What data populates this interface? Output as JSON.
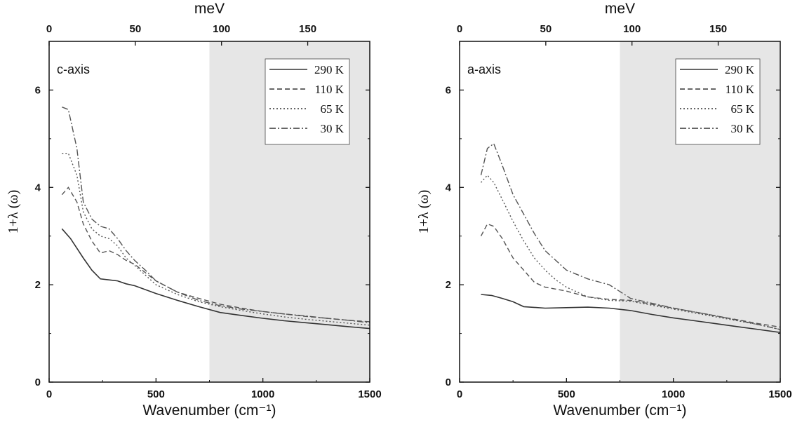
{
  "chart_data": [
    {
      "type": "line",
      "panel_label": "c-axis",
      "xlabel": "Wavenumber (cm⁻¹)",
      "x2label": "meV",
      "ylabel": "1+λ (ω)",
      "xlim": [
        0,
        1500
      ],
      "x2lim": [
        0,
        186
      ],
      "ylim": [
        0,
        7
      ],
      "xticks": [
        0,
        500,
        1000,
        1500
      ],
      "x2ticks": [
        0,
        50,
        100,
        150
      ],
      "yticks": [
        0,
        2,
        4,
        6
      ],
      "shaded_region": [
        750,
        1500
      ],
      "legend_position": "top-right",
      "series": [
        {
          "name": "290 K",
          "dash": "solid",
          "x": [
            60,
            100,
            130,
            160,
            200,
            240,
            280,
            320,
            360,
            400,
            500,
            600,
            700,
            800,
            900,
            1000,
            1100,
            1200,
            1300,
            1400,
            1500
          ],
          "y": [
            3.15,
            2.95,
            2.75,
            2.55,
            2.3,
            2.12,
            2.1,
            2.08,
            2.02,
            1.98,
            1.82,
            1.68,
            1.55,
            1.43,
            1.37,
            1.31,
            1.26,
            1.22,
            1.18,
            1.14,
            1.1
          ]
        },
        {
          "name": "110 K",
          "dash": "dashed",
          "x": [
            60,
            90,
            130,
            160,
            200,
            240,
            280,
            320,
            360,
            400,
            450,
            500,
            600,
            700,
            800,
            900,
            1000,
            1100,
            1200,
            1300,
            1400,
            1500
          ],
          "y": [
            3.85,
            4.0,
            3.7,
            3.25,
            2.9,
            2.65,
            2.7,
            2.62,
            2.5,
            2.42,
            2.25,
            2.08,
            1.85,
            1.72,
            1.6,
            1.52,
            1.45,
            1.4,
            1.35,
            1.31,
            1.27,
            1.24
          ]
        },
        {
          "name": "65 K",
          "dash": "dotted",
          "x": [
            60,
            90,
            130,
            160,
            200,
            240,
            280,
            320,
            360,
            400,
            450,
            500,
            600,
            700,
            800,
            900,
            1000,
            1100,
            1200,
            1300,
            1400,
            1500
          ],
          "y": [
            4.7,
            4.7,
            4.25,
            3.5,
            3.15,
            3.0,
            2.95,
            2.8,
            2.55,
            2.4,
            2.2,
            2.0,
            1.8,
            1.65,
            1.55,
            1.47,
            1.4,
            1.34,
            1.29,
            1.25,
            1.21,
            1.17
          ]
        },
        {
          "name": "30 K",
          "dash": "dashdot",
          "x": [
            60,
            90,
            130,
            160,
            200,
            240,
            280,
            320,
            360,
            400,
            450,
            500,
            600,
            700,
            800,
            900,
            1000,
            1100,
            1200,
            1300,
            1400,
            1500
          ],
          "y": [
            5.65,
            5.6,
            4.8,
            3.7,
            3.35,
            3.2,
            3.15,
            2.95,
            2.7,
            2.5,
            2.3,
            2.08,
            1.85,
            1.68,
            1.57,
            1.5,
            1.45,
            1.4,
            1.36,
            1.31,
            1.27,
            1.22
          ]
        }
      ]
    },
    {
      "type": "line",
      "panel_label": "a-axis",
      "xlabel": "Wavenumber (cm⁻¹)",
      "x2label": "meV",
      "ylabel": "1+λ (ω)",
      "xlim": [
        0,
        1500
      ],
      "x2lim": [
        0,
        186
      ],
      "ylim": [
        0,
        7
      ],
      "xticks": [
        0,
        500,
        1000,
        1500
      ],
      "x2ticks": [
        0,
        50,
        100,
        150
      ],
      "yticks": [
        0,
        2,
        4,
        6
      ],
      "shaded_region": [
        750,
        1500
      ],
      "legend_position": "top-right",
      "series": [
        {
          "name": "290 K",
          "dash": "solid",
          "x": [
            100,
            150,
            200,
            250,
            300,
            400,
            500,
            600,
            700,
            800,
            900,
            1000,
            1100,
            1200,
            1300,
            1400,
            1500
          ],
          "y": [
            1.8,
            1.78,
            1.72,
            1.65,
            1.55,
            1.52,
            1.53,
            1.54,
            1.52,
            1.47,
            1.39,
            1.32,
            1.26,
            1.2,
            1.14,
            1.08,
            1.02
          ]
        },
        {
          "name": "110 K",
          "dash": "dashed",
          "x": [
            100,
            130,
            160,
            200,
            250,
            300,
            350,
            400,
            500,
            600,
            700,
            800,
            900,
            1000,
            1100,
            1200,
            1300,
            1400,
            1500
          ],
          "y": [
            3.0,
            3.25,
            3.2,
            2.95,
            2.55,
            2.3,
            2.05,
            1.95,
            1.87,
            1.75,
            1.7,
            1.68,
            1.6,
            1.52,
            1.44,
            1.36,
            1.28,
            1.2,
            1.13
          ]
        },
        {
          "name": "65 K",
          "dash": "dotted",
          "x": [
            100,
            130,
            160,
            200,
            250,
            300,
            350,
            400,
            450,
            500,
            600,
            700,
            800,
            900,
            1000,
            1100,
            1200,
            1300,
            1400,
            1500
          ],
          "y": [
            4.1,
            4.25,
            4.1,
            3.75,
            3.3,
            2.9,
            2.55,
            2.3,
            2.1,
            1.95,
            1.75,
            1.68,
            1.66,
            1.58,
            1.5,
            1.42,
            1.34,
            1.26,
            1.18,
            1.08
          ]
        },
        {
          "name": "30 K",
          "dash": "dashdot",
          "x": [
            100,
            130,
            160,
            200,
            250,
            300,
            350,
            400,
            450,
            500,
            600,
            700,
            800,
            900,
            1000,
            1100,
            1200,
            1300,
            1400,
            1500
          ],
          "y": [
            4.25,
            4.8,
            4.9,
            4.45,
            3.85,
            3.45,
            3.05,
            2.7,
            2.5,
            2.3,
            2.12,
            2.0,
            1.72,
            1.62,
            1.52,
            1.44,
            1.36,
            1.27,
            1.18,
            1.08
          ]
        }
      ]
    }
  ]
}
